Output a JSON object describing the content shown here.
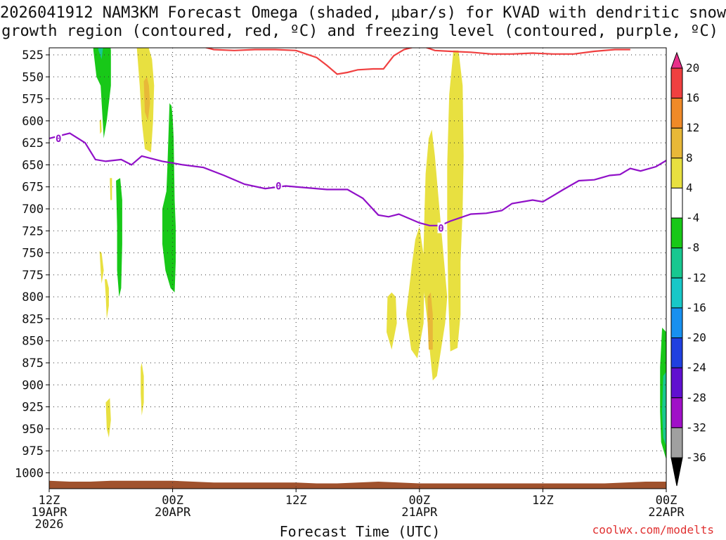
{
  "chart_data": {
    "type": "time-height-contour",
    "title_line1": "2026041912 NAM3KM Forecast Omega (shaded, μbar/s) for KVAD with dendritic snow",
    "title_line2": "growth region (contoured, red, ºC) and freezing level (contoured, purple, ºC)",
    "xlabel": "Forecast Time (UTC)",
    "credit": "coolwx.com/modelts",
    "y_ticks": [
      525,
      550,
      575,
      600,
      625,
      650,
      675,
      700,
      725,
      750,
      775,
      800,
      825,
      850,
      875,
      900,
      925,
      950,
      975,
      1000
    ],
    "y_range": [
      517,
      1018
    ],
    "x_range_hours": [
      0,
      60
    ],
    "x_ticks": [
      {
        "hour": 0,
        "lines": [
          "12Z",
          "19APR",
          "2026"
        ]
      },
      {
        "hour": 12,
        "lines": [
          "00Z",
          "20APR"
        ]
      },
      {
        "hour": 24,
        "lines": [
          "12Z"
        ]
      },
      {
        "hour": 36,
        "lines": [
          "00Z",
          "21APR"
        ]
      },
      {
        "hour": 48,
        "lines": [
          "12Z"
        ]
      },
      {
        "hour": 60,
        "lines": [
          "00Z",
          "22APR"
        ]
      }
    ],
    "colorbar": {
      "labels": [
        "20",
        "16",
        "12",
        "8",
        "4",
        "-4",
        "-8",
        "-12",
        "-16",
        "-20",
        "-24",
        "-28",
        "-32",
        "-36"
      ],
      "bins": [
        {
          "range": [
            20,
            24
          ],
          "color": "#e8308a"
        },
        {
          "range": [
            16,
            20
          ],
          "color": "#f04040"
        },
        {
          "range": [
            12,
            16
          ],
          "color": "#f08a28"
        },
        {
          "range": [
            8,
            12
          ],
          "color": "#e8b838"
        },
        {
          "range": [
            4,
            8
          ],
          "color": "#e8e040"
        },
        {
          "range": [
            -4,
            4
          ],
          "color": "#ffffff"
        },
        {
          "range": [
            -8,
            -4
          ],
          "color": "#18c818"
        },
        {
          "range": [
            -12,
            -8
          ],
          "color": "#18c890"
        },
        {
          "range": [
            -16,
            -12
          ],
          "color": "#18c8c8"
        },
        {
          "range": [
            -20,
            -16
          ],
          "color": "#1890f0"
        },
        {
          "range": [
            -24,
            -20
          ],
          "color": "#2040e0"
        },
        {
          "range": [
            -28,
            -24
          ],
          "color": "#6010d0"
        },
        {
          "range": [
            -32,
            -28
          ],
          "color": "#a010c8"
        },
        {
          "range": [
            -36,
            -32
          ],
          "color": "#a0a0a0"
        },
        {
          "range": [
            -40,
            -36
          ],
          "color": "#000000"
        }
      ]
    },
    "freezing_level": {
      "color": "#9010c8",
      "label": "0",
      "label_points": [
        [
          0.9,
          620
        ],
        [
          22.3,
          674
        ],
        [
          38.1,
          722
        ]
      ],
      "points": [
        [
          0,
          620
        ],
        [
          2,
          614
        ],
        [
          3.5,
          625
        ],
        [
          4.5,
          644
        ],
        [
          5.5,
          646
        ],
        [
          7,
          644
        ],
        [
          8,
          650
        ],
        [
          9,
          640
        ],
        [
          11,
          646
        ],
        [
          13,
          650
        ],
        [
          15,
          653
        ],
        [
          17,
          662
        ],
        [
          19,
          672
        ],
        [
          21,
          677
        ],
        [
          23,
          674
        ],
        [
          25,
          676
        ],
        [
          27,
          678
        ],
        [
          29,
          678
        ],
        [
          30.5,
          688
        ],
        [
          32,
          707
        ],
        [
          33,
          709
        ],
        [
          34,
          706
        ],
        [
          36,
          716
        ],
        [
          37,
          719
        ],
        [
          38,
          719
        ],
        [
          39,
          714
        ],
        [
          41,
          706
        ],
        [
          42.5,
          705
        ],
        [
          44,
          702
        ],
        [
          45,
          694
        ],
        [
          47,
          690
        ],
        [
          48,
          692
        ],
        [
          49,
          685
        ],
        [
          50,
          678
        ],
        [
          51.5,
          668
        ],
        [
          53,
          667
        ],
        [
          54.5,
          662
        ],
        [
          55.5,
          661
        ],
        [
          56.5,
          654
        ],
        [
          57.5,
          657
        ],
        [
          59,
          652
        ],
        [
          60,
          645
        ]
      ]
    },
    "dendritic_red": {
      "color": "#f04040",
      "points": [
        [
          15,
          516
        ],
        [
          16,
          519
        ],
        [
          18,
          520
        ],
        [
          20,
          519
        ],
        [
          22,
          519
        ],
        [
          24,
          520
        ],
        [
          26,
          528
        ],
        [
          27,
          537
        ],
        [
          28,
          547
        ],
        [
          29,
          545
        ],
        [
          30,
          542
        ],
        [
          31.5,
          541
        ],
        [
          32.5,
          541
        ],
        [
          33.5,
          526
        ],
        [
          34.5,
          519
        ],
        [
          35.5,
          516
        ]
      ],
      "points2": [
        [
          36.5,
          516
        ],
        [
          37.5,
          520
        ],
        [
          39,
          521
        ],
        [
          41,
          522
        ],
        [
          43,
          524
        ],
        [
          45,
          524
        ],
        [
          47,
          523
        ],
        [
          49,
          524
        ],
        [
          51,
          524
        ],
        [
          53,
          521
        ],
        [
          55,
          519
        ],
        [
          56.5,
          519
        ]
      ]
    },
    "omega_shading": [
      {
        "value": 6,
        "color": "#e8e040",
        "points": [
          [
            8.5,
            514
          ],
          [
            8.8,
            560
          ],
          [
            9,
            600
          ],
          [
            9.3,
            632
          ],
          [
            9.9,
            636
          ],
          [
            10.1,
            600
          ],
          [
            10.2,
            560
          ],
          [
            10,
            530
          ],
          [
            9.5,
            510
          ],
          [
            8.5,
            500
          ]
        ]
      },
      {
        "value": 10,
        "color": "#e8b838",
        "points": [
          [
            9.2,
            555
          ],
          [
            9.3,
            590
          ],
          [
            9.6,
            600
          ],
          [
            9.8,
            580
          ],
          [
            9.7,
            560
          ],
          [
            9.5,
            550
          ]
        ]
      },
      {
        "value": 6,
        "color": "#e8e040",
        "points": [
          [
            36.4,
            745
          ],
          [
            36.3,
            780
          ],
          [
            36.8,
            830
          ],
          [
            37,
            860
          ],
          [
            37.3,
            895
          ],
          [
            37.7,
            890
          ],
          [
            38.1,
            860
          ],
          [
            38.5,
            830
          ],
          [
            38.7,
            800
          ],
          [
            38.4,
            760
          ],
          [
            38.1,
            720
          ],
          [
            37.8,
            680
          ],
          [
            37.5,
            640
          ],
          [
            37.2,
            610
          ],
          [
            36.9,
            620
          ],
          [
            36.6,
            660
          ],
          [
            36.5,
            700
          ]
        ]
      },
      {
        "value": 6,
        "color": "#e8e040",
        "points": [
          [
            35,
            790
          ],
          [
            34.7,
            820
          ],
          [
            35.2,
            860
          ],
          [
            35.8,
            870
          ],
          [
            36.4,
            830
          ],
          [
            36.5,
            760
          ],
          [
            36,
            720
          ],
          [
            35.6,
            735
          ],
          [
            35.3,
            760
          ]
        ]
      },
      {
        "value": 6,
        "color": "#e8e040",
        "points": [
          [
            32.9,
            800
          ],
          [
            32.8,
            840
          ],
          [
            33.3,
            860
          ],
          [
            33.8,
            830
          ],
          [
            33.7,
            800
          ],
          [
            33.3,
            795
          ]
        ]
      },
      {
        "value": 10,
        "color": "#e8b838",
        "points": [
          [
            36.8,
            800
          ],
          [
            36.8,
            830
          ],
          [
            36.9,
            860
          ],
          [
            37.3,
            860
          ],
          [
            37.3,
            820
          ],
          [
            37.1,
            795
          ]
        ]
      },
      {
        "value": 6,
        "color": "#e8e040",
        "points": [
          [
            38.9,
            570
          ],
          [
            38.7,
            650
          ],
          [
            38.7,
            720
          ],
          [
            38.8,
            800
          ],
          [
            39,
            862
          ],
          [
            39.7,
            858
          ],
          [
            40,
            820
          ],
          [
            40,
            760
          ],
          [
            40.2,
            700
          ],
          [
            40.3,
            640
          ],
          [
            40.2,
            560
          ],
          [
            39.8,
            520
          ],
          [
            39.3,
            520
          ]
        ]
      },
      {
        "value": -6,
        "color": "#18c818",
        "points": [
          [
            4.2,
            500
          ],
          [
            4.3,
            520
          ],
          [
            4.6,
            550
          ],
          [
            5,
            560
          ],
          [
            5.3,
            620
          ],
          [
            5.6,
            600
          ],
          [
            6,
            560
          ],
          [
            6,
            520
          ],
          [
            5.8,
            500
          ]
        ]
      },
      {
        "value": -10,
        "color": "#18c890",
        "points": [
          [
            4.7,
            500
          ],
          [
            4.8,
            520
          ],
          [
            5.1,
            530
          ],
          [
            5.3,
            510
          ],
          [
            5.2,
            500
          ]
        ]
      },
      {
        "value": -6,
        "color": "#18c818",
        "points": [
          [
            6.5,
            668
          ],
          [
            6.6,
            720
          ],
          [
            6.6,
            770
          ],
          [
            6.8,
            800
          ],
          [
            7,
            790
          ],
          [
            7.1,
            740
          ],
          [
            7.1,
            690
          ],
          [
            6.9,
            665
          ]
        ]
      },
      {
        "value": -6,
        "color": "#18c818",
        "points": [
          [
            11.7,
            580
          ],
          [
            11.5,
            650
          ],
          [
            11.4,
            680
          ],
          [
            11,
            700
          ],
          [
            11,
            740
          ],
          [
            11.3,
            770
          ],
          [
            11.8,
            790
          ],
          [
            12.2,
            795
          ],
          [
            12.3,
            760
          ],
          [
            12.3,
            720
          ],
          [
            12.2,
            690
          ],
          [
            12.1,
            620
          ],
          [
            12,
            595
          ],
          [
            11.9,
            583
          ]
        ]
      },
      {
        "value": -6,
        "color": "#18c818",
        "points": [
          [
            59.6,
            835
          ],
          [
            59.4,
            880
          ],
          [
            59.4,
            930
          ],
          [
            59.5,
            965
          ],
          [
            60,
            985
          ],
          [
            60,
            840
          ]
        ]
      },
      {
        "value": -10,
        "color": "#18c890",
        "points": [
          [
            59.7,
            890
          ],
          [
            59.6,
            930
          ],
          [
            59.7,
            960
          ],
          [
            60,
            970
          ],
          [
            60,
            885
          ]
        ]
      },
      {
        "value": 6,
        "color": "#e8e040",
        "points": [
          [
            5.4,
            780
          ],
          [
            5.5,
            800
          ],
          [
            5.6,
            825
          ],
          [
            5.8,
            810
          ],
          [
            5.8,
            790
          ],
          [
            5.6,
            780
          ]
        ]
      },
      {
        "value": 6,
        "color": "#e8e040",
        "points": [
          [
            5.5,
            920
          ],
          [
            5.6,
            950
          ],
          [
            5.8,
            960
          ],
          [
            6,
            940
          ],
          [
            5.9,
            915
          ]
        ]
      },
      {
        "value": 6,
        "color": "#e8e040",
        "points": [
          [
            8.9,
            880
          ],
          [
            8.9,
            910
          ],
          [
            9,
            935
          ],
          [
            9.2,
            920
          ],
          [
            9.2,
            890
          ],
          [
            9,
            875
          ]
        ]
      },
      {
        "value": 6,
        "color": "#e8e040",
        "points": [
          [
            4.9,
            748
          ],
          [
            5,
            770
          ],
          [
            5.1,
            785
          ],
          [
            5.3,
            770
          ],
          [
            5.1,
            750
          ]
        ]
      },
      {
        "value": 6,
        "color": "#e8e040",
        "points": [
          [
            5.9,
            665
          ],
          [
            5.95,
            690
          ],
          [
            6.1,
            690
          ],
          [
            6.1,
            665
          ]
        ]
      },
      {
        "value": 6,
        "color": "#e8e040",
        "points": [
          [
            4.9,
            600
          ],
          [
            4.95,
            615
          ],
          [
            5.1,
            612
          ],
          [
            5.05,
            598
          ]
        ]
      }
    ],
    "terrain": {
      "color": "#a0522d",
      "points": [
        [
          0,
          1009
        ],
        [
          2,
          1010
        ],
        [
          4,
          1010
        ],
        [
          6,
          1009
        ],
        [
          8,
          1009
        ],
        [
          10,
          1009
        ],
        [
          12,
          1009
        ],
        [
          14,
          1010
        ],
        [
          16,
          1011
        ],
        [
          18,
          1011
        ],
        [
          20,
          1011
        ],
        [
          22,
          1011
        ],
        [
          24,
          1011
        ],
        [
          26,
          1012
        ],
        [
          28,
          1012
        ],
        [
          30,
          1011
        ],
        [
          32,
          1010
        ],
        [
          34,
          1011
        ],
        [
          36,
          1012
        ],
        [
          38,
          1012
        ],
        [
          40,
          1012
        ],
        [
          42,
          1012
        ],
        [
          44,
          1012
        ],
        [
          46,
          1012
        ],
        [
          48,
          1012
        ],
        [
          50,
          1012
        ],
        [
          52,
          1012
        ],
        [
          54,
          1012
        ],
        [
          56,
          1011
        ],
        [
          58,
          1010
        ],
        [
          60,
          1010
        ]
      ]
    }
  }
}
